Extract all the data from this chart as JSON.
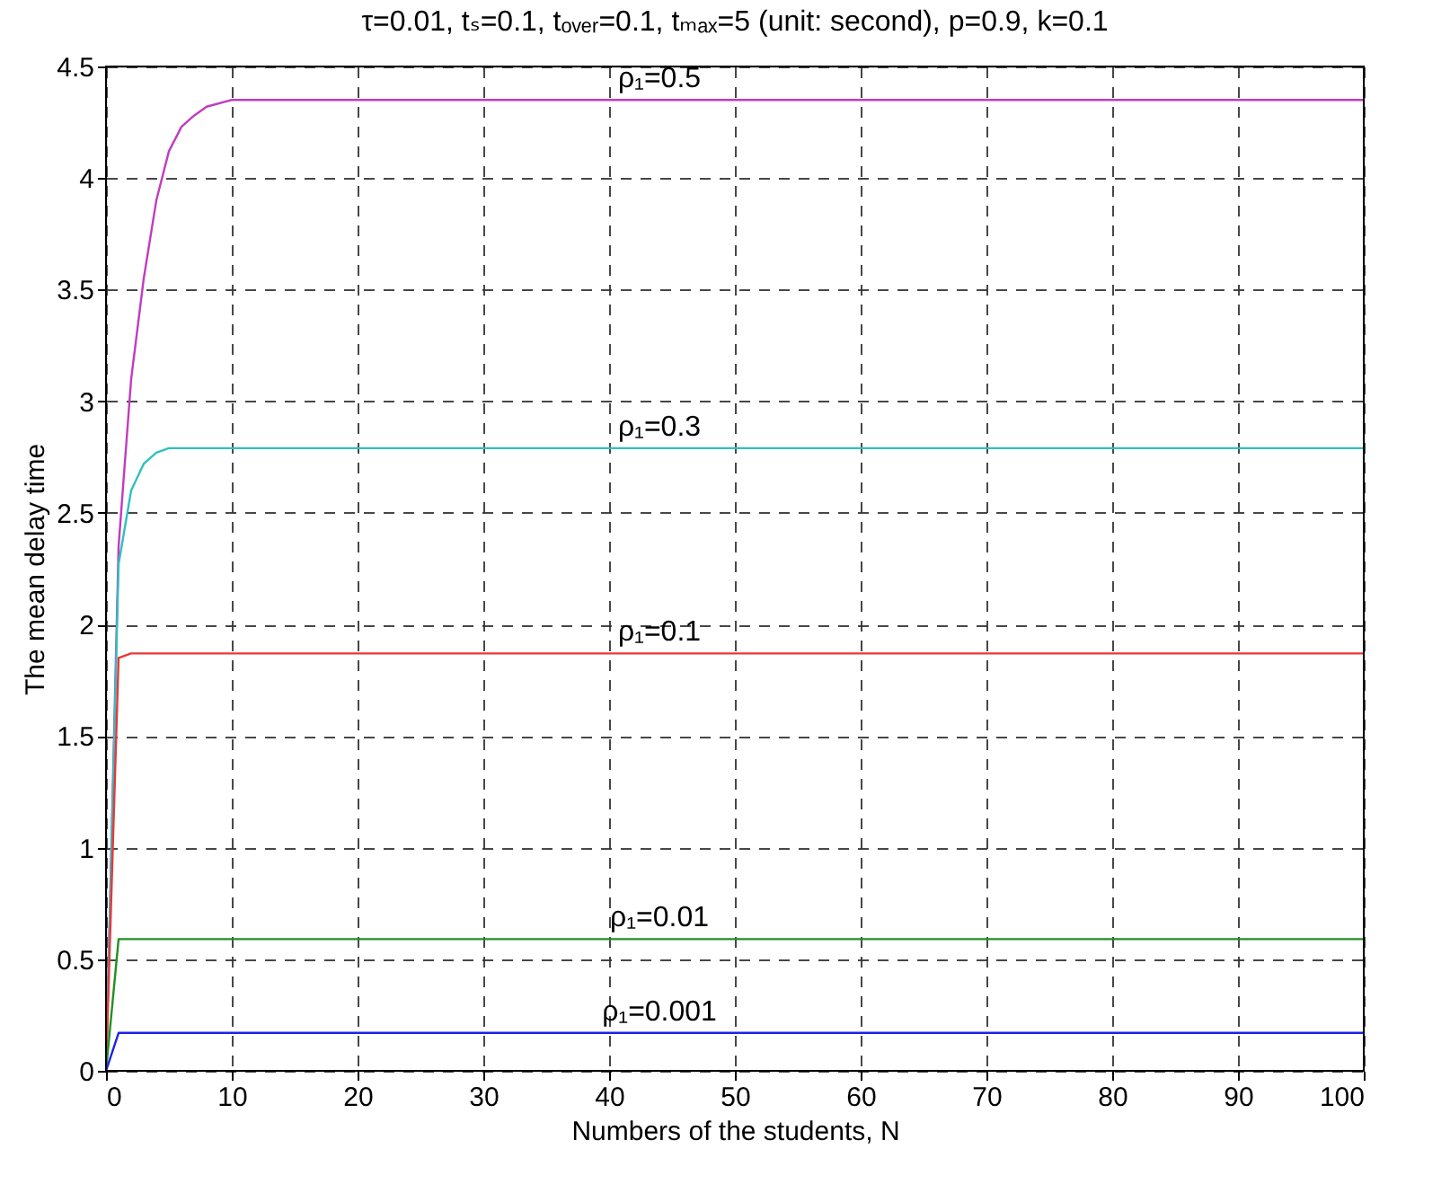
{
  "chart_data": {
    "type": "line",
    "title": "τ=0.01, tₛ=0.1, tₒᵥₑᵣ=0.1, tₘₐₓ=5 (unit: second), p=0.9, k=0.1",
    "xlabel": "Numbers of the students, N",
    "ylabel": "The mean delay time",
    "x": [
      0,
      1,
      2,
      3,
      4,
      5,
      6,
      7,
      8,
      10,
      100
    ],
    "series": [
      {
        "name": "ρ₁=0.5",
        "color": "#c03cc0",
        "values": [
          0,
          2.35,
          3.1,
          3.55,
          3.9,
          4.12,
          4.23,
          4.28,
          4.32,
          4.35,
          4.35
        ]
      },
      {
        "name": "ρ₁=0.3",
        "color": "#30c0c0",
        "values": [
          0,
          2.27,
          2.6,
          2.72,
          2.77,
          2.79,
          2.79,
          2.79,
          2.79,
          2.79,
          2.79
        ]
      },
      {
        "name": "ρ₁=0.1",
        "color": "#e83838",
        "values": [
          0,
          1.85,
          1.87,
          1.87,
          1.87,
          1.87,
          1.87,
          1.87,
          1.87,
          1.87,
          1.87
        ]
      },
      {
        "name": "ρ₁=0.01",
        "color": "#209020",
        "values": [
          0,
          0.59,
          0.59,
          0.59,
          0.59,
          0.59,
          0.59,
          0.59,
          0.59,
          0.59,
          0.59
        ]
      },
      {
        "name": "ρ₁=0.001",
        "color": "#2020e8",
        "values": [
          0,
          0.17,
          0.17,
          0.17,
          0.17,
          0.17,
          0.17,
          0.17,
          0.17,
          0.17,
          0.17
        ]
      }
    ],
    "xlim": [
      0,
      100
    ],
    "xticks": [
      0,
      10,
      20,
      30,
      40,
      50,
      60,
      70,
      80,
      90,
      100
    ],
    "ylim": [
      0,
      4.5
    ],
    "yticks": [
      0,
      0.5,
      1,
      1.5,
      2,
      2.5,
      3,
      3.5,
      4,
      4.5
    ],
    "grid": true,
    "legend": false,
    "marker": "none",
    "line_style": "solid"
  }
}
